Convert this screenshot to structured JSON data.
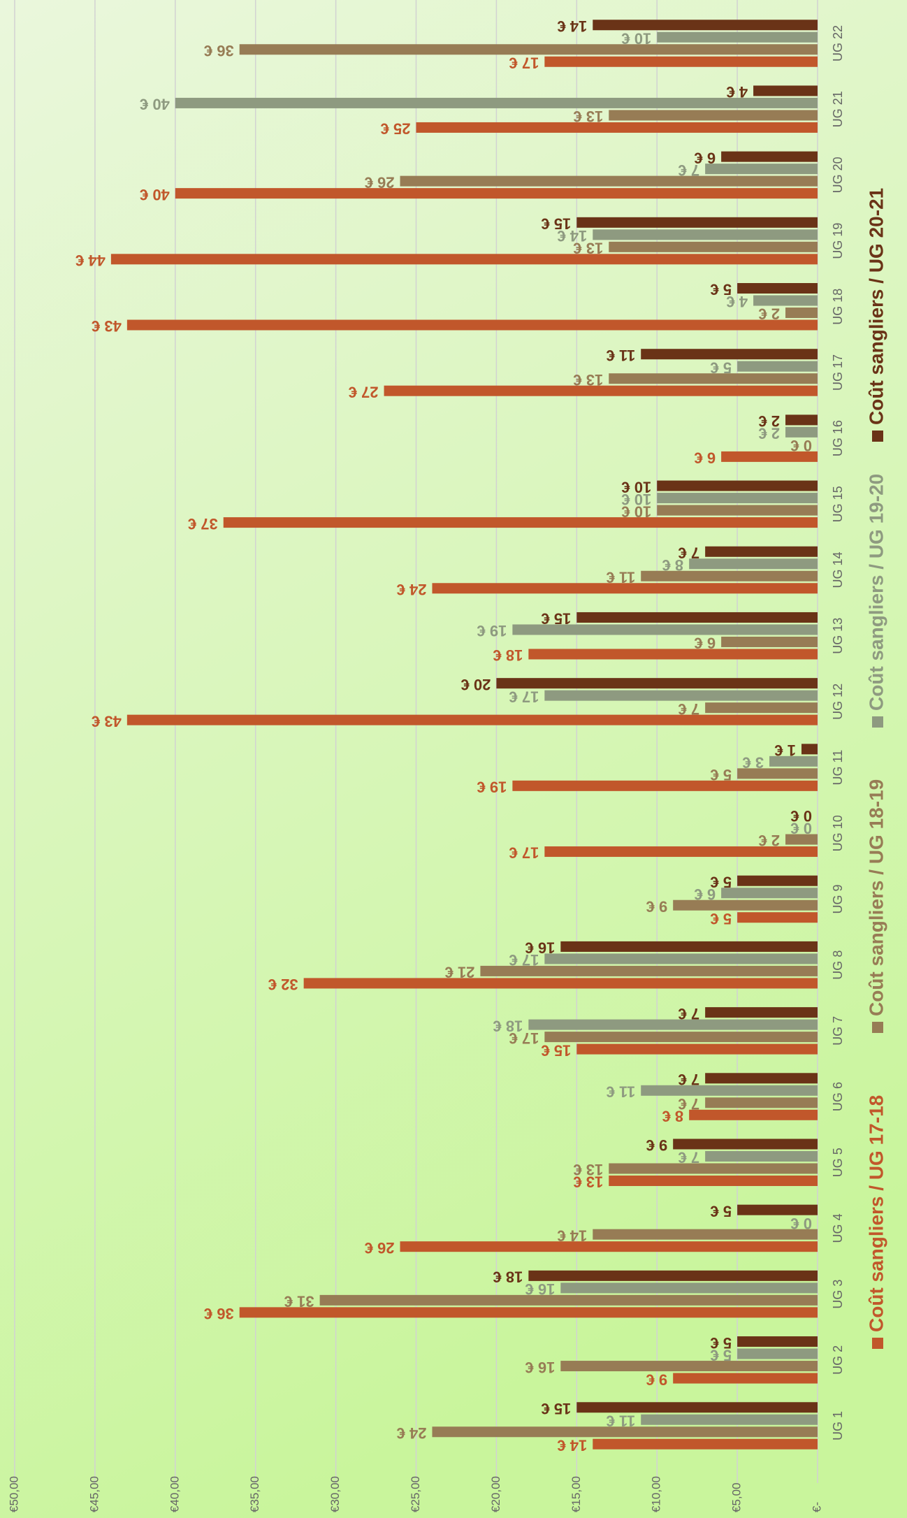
{
  "chart_data": {
    "type": "bar",
    "categories": [
      "UG 1",
      "UG 2",
      "UG 3",
      "UG 4",
      "UG 5",
      "UG 6",
      "UG 7",
      "UG 8",
      "UG 9",
      "UG 10",
      "UG 11",
      "UG 12",
      "UG 13",
      "UG 14",
      "UG 15",
      "UG 16",
      "UG 17",
      "UG 18",
      "UG 19",
      "UG 20",
      "UG 21",
      "UG 22"
    ],
    "series": [
      {
        "name": "Coût sangliers / UG 17-18",
        "color": "#c1572b",
        "values": [
          14,
          9,
          36,
          26,
          13,
          8,
          15,
          32,
          5,
          17,
          19,
          43,
          18,
          24,
          37,
          6,
          27,
          43,
          44,
          40,
          25,
          17
        ],
        "value_labels": [
          "14 €",
          "9 €",
          "36 €",
          "26 €",
          "13 €",
          "8 €",
          "15 €",
          "32 €",
          "5 €",
          "17 €",
          "19 €",
          "43 €",
          "18 €",
          "24 €",
          "37 €",
          "6 €",
          "27 €",
          "43 €",
          "44 €",
          "40 €",
          "25 €",
          "17 €"
        ]
      },
      {
        "name": "Coût sangliers / UG 18-19",
        "color": "#977c55",
        "values": [
          24,
          16,
          31,
          14,
          13,
          7,
          17,
          21,
          9,
          2,
          5,
          7,
          6,
          11,
          10,
          0,
          13,
          2,
          13,
          26,
          13,
          36
        ],
        "value_labels": [
          "24 €",
          "16 €",
          "31 €",
          "14 €",
          "13 €",
          "7 €",
          "17 €",
          "21 €",
          "9 €",
          "2 €",
          "5 €",
          "7 €",
          "6 €",
          "11 €",
          "10 €",
          "0 €",
          "13 €",
          "2 €",
          "13 €",
          "26 €",
          "13 €",
          "36 €"
        ]
      },
      {
        "name": "Coût sangliers / UG 19-20",
        "color": "#8e9a80",
        "values": [
          11,
          5,
          16,
          0,
          7,
          11,
          18,
          17,
          6,
          0,
          3,
          17,
          19,
          8,
          10,
          2,
          5,
          4,
          14,
          7,
          40,
          10
        ],
        "value_labels": [
          "11 €",
          "5 €",
          "16 €",
          "0 €",
          "7 €",
          "11 €",
          "18 €",
          "17 €",
          "6 €",
          "0 €",
          "3 €",
          "17 €",
          "19 €",
          "8 €",
          "10 €",
          "2 €",
          "5 €",
          "4 €",
          "14 €",
          "7 €",
          "40 €",
          "10 €"
        ]
      },
      {
        "name": "Coût sangliers / UG 20-21",
        "color": "#6a3317",
        "values": [
          15,
          5,
          18,
          5,
          9,
          7,
          7,
          16,
          5,
          0,
          1,
          20,
          15,
          7,
          10,
          2,
          11,
          5,
          15,
          6,
          4,
          14
        ],
        "value_labels": [
          "15 €",
          "5 €",
          "18 €",
          "5 €",
          "9 €",
          "7 €",
          "7 €",
          "16 €",
          "5 €",
          "0 €",
          "1 €",
          "20 €",
          "15 €",
          "7 €",
          "10 €",
          "2 €",
          "11 €",
          "5 €",
          "15 €",
          "6 €",
          "4 €",
          "14 €"
        ]
      }
    ],
    "ylim": [
      0,
      50
    ],
    "yticks": [
      {
        "value": 0,
        "label": "€-"
      },
      {
        "value": 5,
        "label": "€5,00"
      },
      {
        "value": 10,
        "label": "€10,00"
      },
      {
        "value": 15,
        "label": "€15,00"
      },
      {
        "value": 20,
        "label": "€20,00"
      },
      {
        "value": 25,
        "label": "€25,00"
      },
      {
        "value": 30,
        "label": "€30,00"
      },
      {
        "value": 35,
        "label": "€35,00"
      },
      {
        "value": 40,
        "label": "€40,00"
      },
      {
        "value": 45,
        "label": "€45,00"
      },
      {
        "value": 50,
        "label": "€50,00"
      }
    ],
    "grid": true,
    "legend": "bottom"
  }
}
